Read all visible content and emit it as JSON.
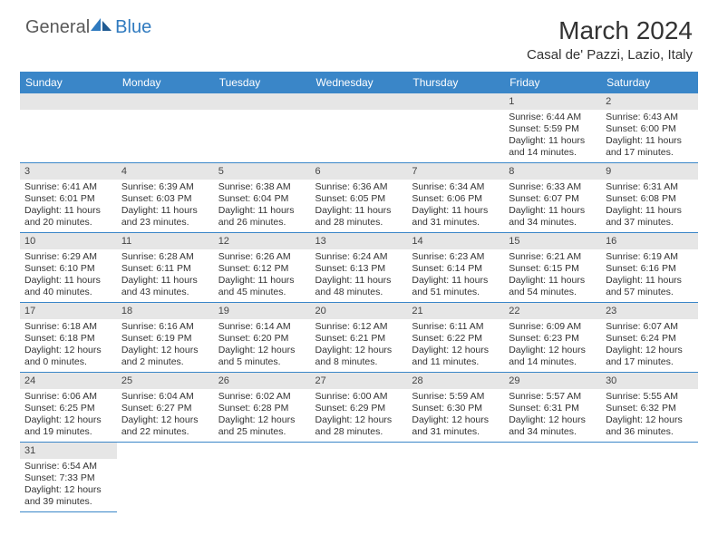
{
  "logo": {
    "general": "General",
    "blue": "Blue"
  },
  "title": "March 2024",
  "location": "Casal de' Pazzi, Lazio, Italy",
  "colors": {
    "header_bg": "#3a86c8",
    "header_text": "#ffffff",
    "daynum_bg": "#e6e6e6",
    "border": "#3a86c8",
    "logo_blue": "#2f7abf",
    "logo_gray": "#5a5a5a"
  },
  "daysOfWeek": [
    "Sunday",
    "Monday",
    "Tuesday",
    "Wednesday",
    "Thursday",
    "Friday",
    "Saturday"
  ],
  "weeks": [
    [
      null,
      null,
      null,
      null,
      null,
      {
        "n": "1",
        "sr": "6:44 AM",
        "ss": "5:59 PM",
        "dl": "11 hours and 14 minutes."
      },
      {
        "n": "2",
        "sr": "6:43 AM",
        "ss": "6:00 PM",
        "dl": "11 hours and 17 minutes."
      }
    ],
    [
      {
        "n": "3",
        "sr": "6:41 AM",
        "ss": "6:01 PM",
        "dl": "11 hours and 20 minutes."
      },
      {
        "n": "4",
        "sr": "6:39 AM",
        "ss": "6:03 PM",
        "dl": "11 hours and 23 minutes."
      },
      {
        "n": "5",
        "sr": "6:38 AM",
        "ss": "6:04 PM",
        "dl": "11 hours and 26 minutes."
      },
      {
        "n": "6",
        "sr": "6:36 AM",
        "ss": "6:05 PM",
        "dl": "11 hours and 28 minutes."
      },
      {
        "n": "7",
        "sr": "6:34 AM",
        "ss": "6:06 PM",
        "dl": "11 hours and 31 minutes."
      },
      {
        "n": "8",
        "sr": "6:33 AM",
        "ss": "6:07 PM",
        "dl": "11 hours and 34 minutes."
      },
      {
        "n": "9",
        "sr": "6:31 AM",
        "ss": "6:08 PM",
        "dl": "11 hours and 37 minutes."
      }
    ],
    [
      {
        "n": "10",
        "sr": "6:29 AM",
        "ss": "6:10 PM",
        "dl": "11 hours and 40 minutes."
      },
      {
        "n": "11",
        "sr": "6:28 AM",
        "ss": "6:11 PM",
        "dl": "11 hours and 43 minutes."
      },
      {
        "n": "12",
        "sr": "6:26 AM",
        "ss": "6:12 PM",
        "dl": "11 hours and 45 minutes."
      },
      {
        "n": "13",
        "sr": "6:24 AM",
        "ss": "6:13 PM",
        "dl": "11 hours and 48 minutes."
      },
      {
        "n": "14",
        "sr": "6:23 AM",
        "ss": "6:14 PM",
        "dl": "11 hours and 51 minutes."
      },
      {
        "n": "15",
        "sr": "6:21 AM",
        "ss": "6:15 PM",
        "dl": "11 hours and 54 minutes."
      },
      {
        "n": "16",
        "sr": "6:19 AM",
        "ss": "6:16 PM",
        "dl": "11 hours and 57 minutes."
      }
    ],
    [
      {
        "n": "17",
        "sr": "6:18 AM",
        "ss": "6:18 PM",
        "dl": "12 hours and 0 minutes."
      },
      {
        "n": "18",
        "sr": "6:16 AM",
        "ss": "6:19 PM",
        "dl": "12 hours and 2 minutes."
      },
      {
        "n": "19",
        "sr": "6:14 AM",
        "ss": "6:20 PM",
        "dl": "12 hours and 5 minutes."
      },
      {
        "n": "20",
        "sr": "6:12 AM",
        "ss": "6:21 PM",
        "dl": "12 hours and 8 minutes."
      },
      {
        "n": "21",
        "sr": "6:11 AM",
        "ss": "6:22 PM",
        "dl": "12 hours and 11 minutes."
      },
      {
        "n": "22",
        "sr": "6:09 AM",
        "ss": "6:23 PM",
        "dl": "12 hours and 14 minutes."
      },
      {
        "n": "23",
        "sr": "6:07 AM",
        "ss": "6:24 PM",
        "dl": "12 hours and 17 minutes."
      }
    ],
    [
      {
        "n": "24",
        "sr": "6:06 AM",
        "ss": "6:25 PM",
        "dl": "12 hours and 19 minutes."
      },
      {
        "n": "25",
        "sr": "6:04 AM",
        "ss": "6:27 PM",
        "dl": "12 hours and 22 minutes."
      },
      {
        "n": "26",
        "sr": "6:02 AM",
        "ss": "6:28 PM",
        "dl": "12 hours and 25 minutes."
      },
      {
        "n": "27",
        "sr": "6:00 AM",
        "ss": "6:29 PM",
        "dl": "12 hours and 28 minutes."
      },
      {
        "n": "28",
        "sr": "5:59 AM",
        "ss": "6:30 PM",
        "dl": "12 hours and 31 minutes."
      },
      {
        "n": "29",
        "sr": "5:57 AM",
        "ss": "6:31 PM",
        "dl": "12 hours and 34 minutes."
      },
      {
        "n": "30",
        "sr": "5:55 AM",
        "ss": "6:32 PM",
        "dl": "12 hours and 36 minutes."
      }
    ],
    [
      {
        "n": "31",
        "sr": "6:54 AM",
        "ss": "7:33 PM",
        "dl": "12 hours and 39 minutes."
      },
      null,
      null,
      null,
      null,
      null,
      null
    ]
  ],
  "labels": {
    "sunrise": "Sunrise:",
    "sunset": "Sunset:",
    "daylight": "Daylight:"
  }
}
